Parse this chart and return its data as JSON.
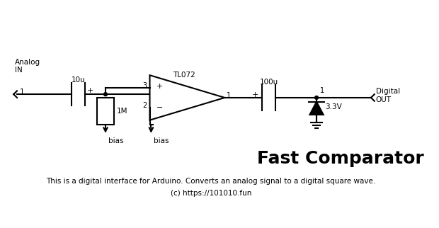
{
  "title": "Fast Comparator",
  "subtitle": "This is a digital interface for Arduino. Converts an analog signal to a digital square wave.",
  "copyright": "(c) https://101010.fun",
  "bg_color": "#ffffff",
  "line_color": "#000000",
  "lw": 1.5,
  "labels": {
    "analog_in_1": "Analog\nIN",
    "analog_in_num": "1",
    "cap1_label": "10u",
    "cap1_plus": "+",
    "resistor_label": "1M",
    "opamp_label": "TL072",
    "opamp_in_plus": "+",
    "opamp_in_minus": "−",
    "opamp_out_num": "1",
    "opamp_in_plus_num": "3",
    "opamp_in_minus_num": "2",
    "cap2_label": "100u",
    "cap2_plus": "+",
    "zener_label": "3.3V",
    "digital_out": "Digital\nOUT",
    "digital_out_num": "1",
    "bias1": "bias",
    "bias2": "bias"
  }
}
